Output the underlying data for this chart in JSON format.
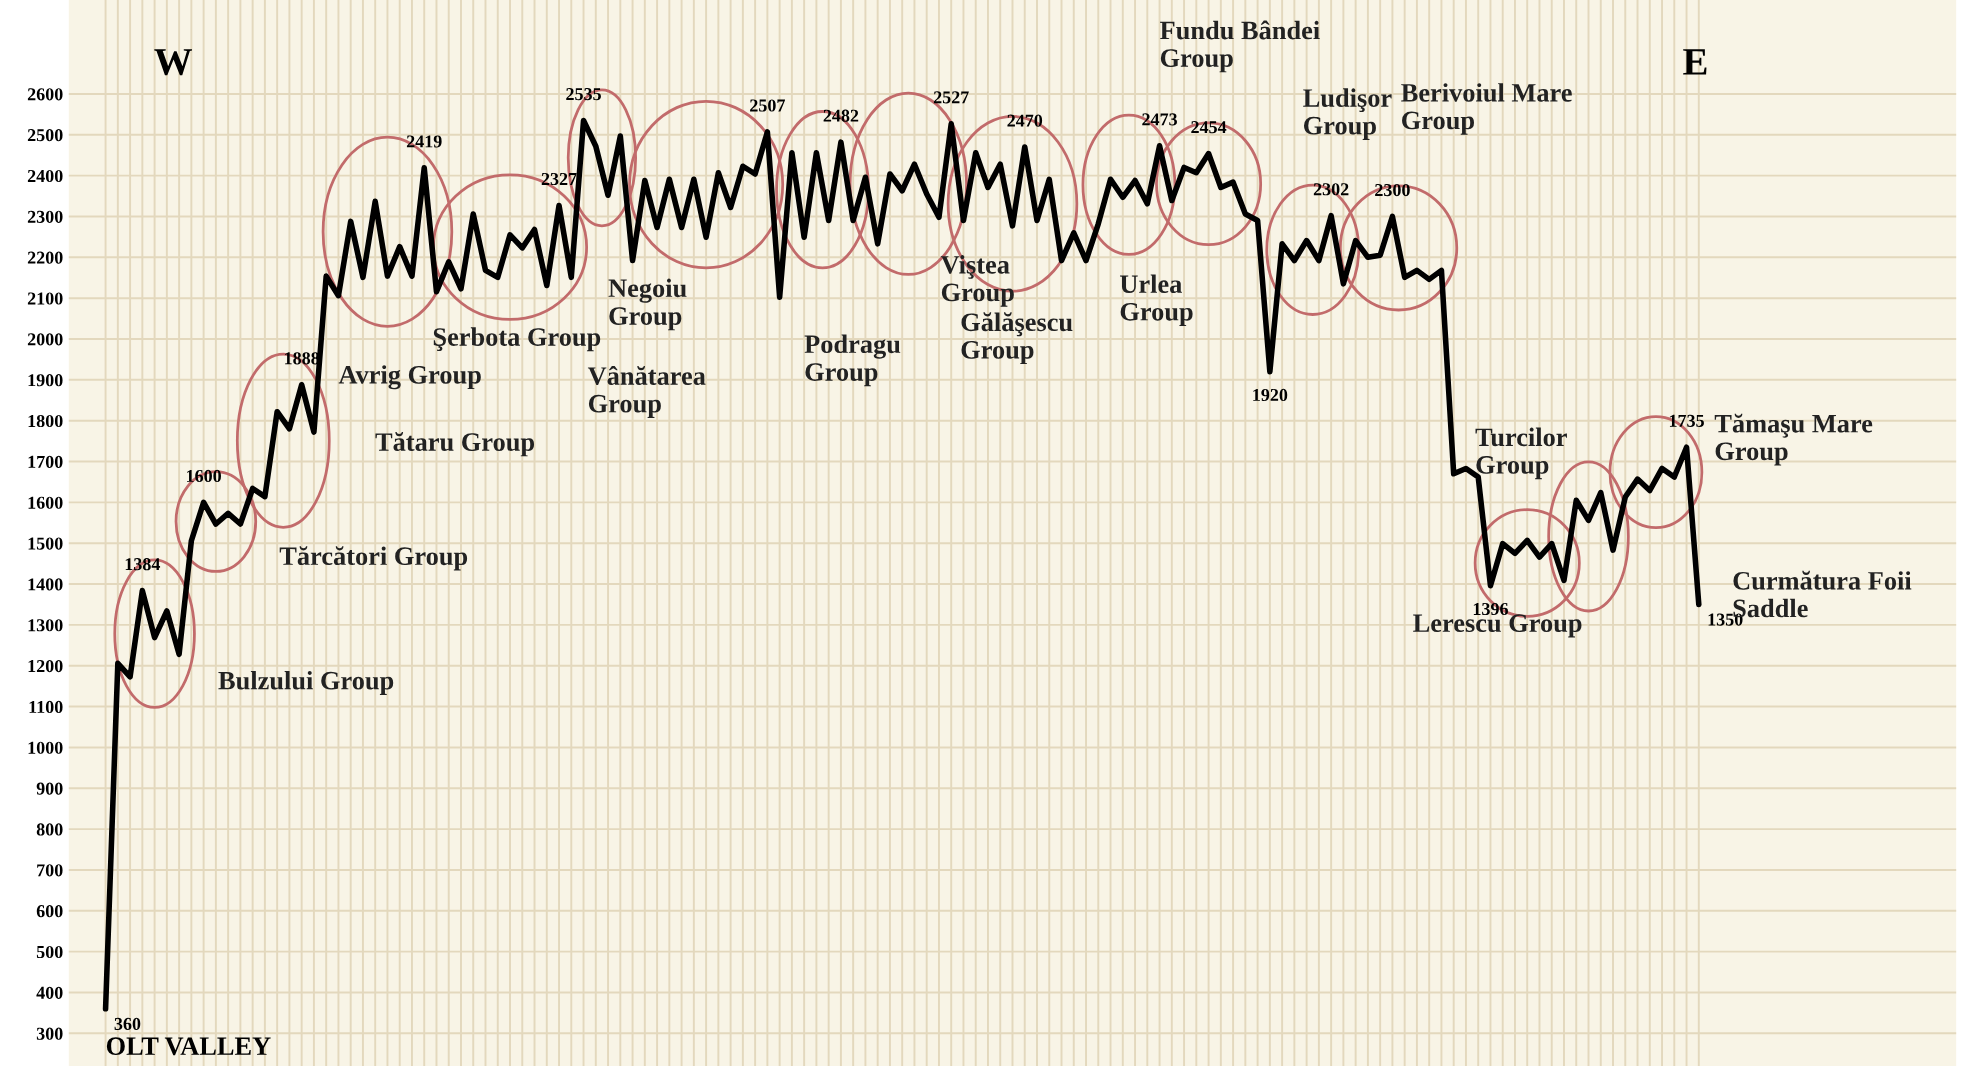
{
  "chart_data": {
    "type": "line",
    "categories": [
      null,
      null,
      null,
      null,
      null,
      null,
      null,
      null,
      null,
      null,
      null,
      null,
      null,
      null,
      null,
      null,
      null,
      null,
      null,
      null,
      null,
      null,
      null,
      null,
      null,
      null,
      null,
      null,
      null,
      null,
      null,
      null,
      null,
      null,
      null,
      null,
      null,
      null,
      null,
      null,
      null,
      null,
      null,
      null,
      null,
      null,
      null,
      null,
      null,
      null,
      null,
      null,
      null,
      null,
      null,
      null,
      null,
      null,
      null,
      null,
      null,
      null,
      null,
      null,
      null,
      null,
      null,
      null,
      null,
      null,
      null,
      null,
      null,
      null,
      null,
      null,
      null,
      null,
      null,
      null,
      null,
      null,
      null,
      null,
      null,
      null,
      null,
      null,
      null,
      null,
      null,
      null,
      null,
      null,
      null,
      null,
      null,
      null,
      null,
      null,
      null,
      null,
      null,
      null,
      null,
      null,
      null,
      null,
      null,
      null,
      null,
      null,
      null,
      null,
      null,
      null,
      null,
      null,
      null,
      null,
      null,
      null,
      null,
      null,
      null,
      null,
      null,
      null,
      null,
      null,
      null
    ],
    "series": [
      {
        "color": "#000000",
        "values": [
          360,
          1206,
          1173,
          1384,
          1269,
          1334,
          1228,
          1506,
          1600,
          1547,
          1573,
          1547,
          1634,
          1614,
          1822,
          1780,
          1888,
          1772,
          2154,
          2106,
          2288,
          2151,
          2337,
          2154,
          2226,
          2154,
          2419,
          2116,
          2189,
          2123,
          2306,
          2168,
          2151,
          2255,
          2223,
          2268,
          2131,
          2327,
          2151,
          2535,
          2472,
          2352,
          2497,
          2192,
          2388,
          2273,
          2391,
          2273,
          2391,
          2249,
          2407,
          2322,
          2423,
          2404,
          2507,
          2102,
          2456,
          2249,
          2456,
          2290,
          2482,
          2290,
          2396,
          2233,
          2404,
          2363,
          2428,
          2355,
          2298,
          2527,
          2290,
          2456,
          2371,
          2428,
          2277,
          2470,
          2290,
          2391,
          2192,
          2260,
          2192,
          2282,
          2391,
          2347,
          2388,
          2331,
          2473,
          2339,
          2420,
          2407,
          2454,
          2371,
          2384,
          2306,
          2290,
          1920,
          2233,
          2192,
          2241,
          2192,
          2302,
          2135,
          2241,
          2200,
          2205,
          2300,
          2151,
          2168,
          2146,
          2168,
          1670,
          1683,
          1662,
          1396,
          1499,
          1475,
          1507,
          1466,
          1499,
          1409,
          1605,
          1556,
          1624,
          1483,
          1613,
          1657,
          1629,
          1683,
          1662,
          1735,
          1350
        ],
        "value_labels": [
          "360",
          null,
          null,
          "1384",
          null,
          null,
          null,
          null,
          "1600",
          null,
          null,
          null,
          null,
          null,
          null,
          null,
          "1888",
          null,
          null,
          null,
          null,
          null,
          null,
          null,
          null,
          null,
          "2419",
          null,
          null,
          null,
          null,
          null,
          null,
          null,
          null,
          null,
          null,
          "2327",
          null,
          "2535",
          null,
          null,
          null,
          null,
          null,
          null,
          null,
          null,
          null,
          null,
          null,
          null,
          null,
          null,
          "2507",
          null,
          null,
          null,
          null,
          null,
          "2482",
          null,
          null,
          null,
          null,
          null,
          null,
          null,
          null,
          "2527",
          null,
          null,
          null,
          null,
          null,
          "2470",
          null,
          null,
          null,
          null,
          null,
          null,
          null,
          null,
          null,
          null,
          "2473",
          null,
          null,
          null,
          "2454",
          null,
          null,
          null,
          null,
          "1920",
          null,
          null,
          null,
          null,
          "2302",
          null,
          null,
          null,
          null,
          "2300",
          null,
          null,
          null,
          null,
          null,
          null,
          null,
          "1396",
          null,
          null,
          null,
          null,
          null,
          null,
          null,
          null,
          null,
          null,
          null,
          null,
          null,
          null,
          null,
          "1735",
          "1350"
        ]
      }
    ],
    "annotations": [
      "W",
      "E",
      "OLT VALLEY",
      "Bulzului Group",
      "Tărcători Group",
      "Tătaru Group",
      "Avrig Group",
      "Şerbota Group",
      "Negoiu\nGroup",
      "Vânătarea\nGroup",
      "Podragu\nGroup",
      "Viştea\nGroup",
      "Gălăşescu\nGroup",
      "Urlea\nGroup",
      "Fundu Bândei\nGroup",
      "Ludişor\nGroup",
      "Berivoiul Mare\nGroup",
      "Lerescu Group",
      "Turcilor\nGroup",
      "Tămaşu Mare\nGroup",
      "Curmătura Foii\nSaddle"
    ],
    "ylim": [
      220,
      2830
    ],
    "yticks": [
      300,
      400,
      500,
      600,
      700,
      800,
      900,
      1000,
      1100,
      1200,
      1300,
      1400,
      1500,
      1600,
      1700,
      1800,
      1900,
      2000,
      2100,
      2200,
      2300,
      2400,
      2500,
      2600
    ],
    "grid": true,
    "tick_labels": "y",
    "line_style": "solid",
    "marker": "none",
    "legend": false
  }
}
